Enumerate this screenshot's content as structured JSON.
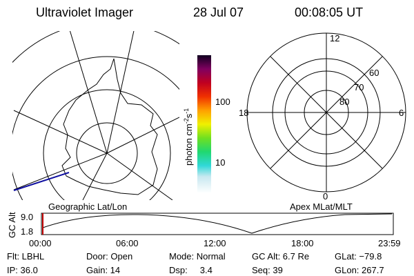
{
  "header": {
    "title": "Ultraviolet Imager",
    "date": "28 Jul 07",
    "time": "00:08:05 UT"
  },
  "colorbar": {
    "unit": "photon cm",
    "unit_exp1": "-2",
    "unit_s": "s",
    "unit_exp2": "-1",
    "ticks": [
      "100",
      "10"
    ]
  },
  "left_map": {
    "label": "Geographic Lat/Lon"
  },
  "right_map": {
    "label": "Apex MLat/MLT",
    "mlt_labels": [
      "12",
      "18",
      "6",
      "0"
    ],
    "lat_labels": [
      "60",
      "70",
      "80"
    ]
  },
  "altitude_plot": {
    "axis_label": "GC Alt",
    "y_labels": [
      "9.0",
      "1.8"
    ],
    "x_labels": [
      "00:00",
      "06:00",
      "12:00",
      "18:00",
      "23:59"
    ]
  },
  "footer": {
    "rows": [
      [
        "Flt: LBHL",
        "Door: Open",
        "Mode: Normal",
        "GC Alt: 6.7 Re",
        "GLat: −79.8"
      ],
      [
        "IP: 36.0",
        "Gain: 14",
        "Dsp:     3.4",
        "Seq: 39",
        "GLon: 267.7"
      ]
    ]
  }
}
